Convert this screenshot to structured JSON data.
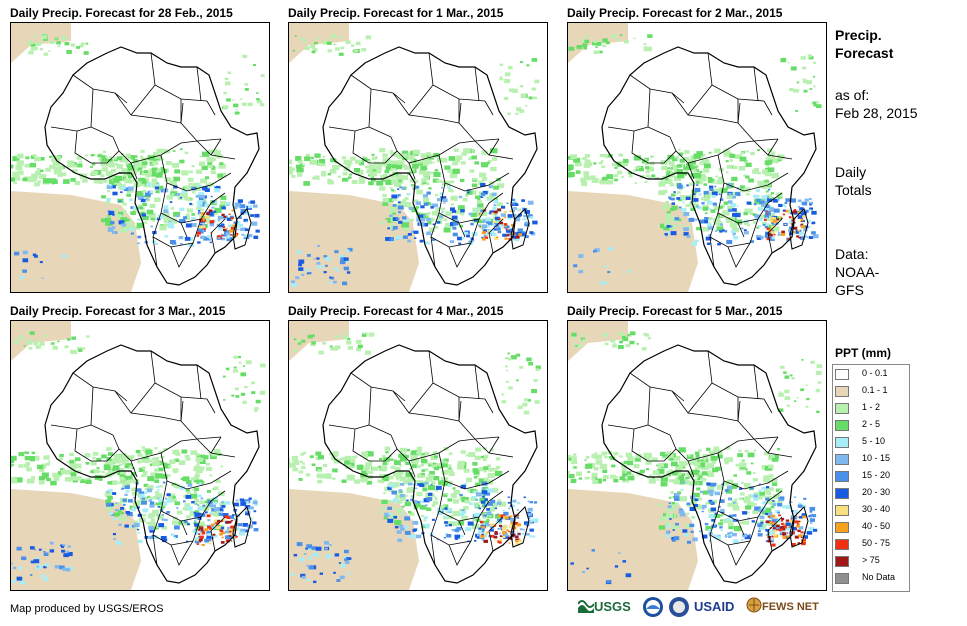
{
  "panels": [
    {
      "title": "Daily Precip. Forecast for 28 Feb., 2015",
      "seed": 11
    },
    {
      "title": "Daily Precip. Forecast for 1 Mar., 2015",
      "seed": 23
    },
    {
      "title": "Daily Precip. Forecast for 2 Mar., 2015",
      "seed": 37
    },
    {
      "title": "Daily Precip. Forecast for 3 Mar., 2015",
      "seed": 41
    },
    {
      "title": "Daily Precip. Forecast for 4 Mar., 2015",
      "seed": 53
    },
    {
      "title": "Daily Precip. Forecast for 5 Mar., 2015",
      "seed": 67
    }
  ],
  "info": {
    "title_line1": "Precip.",
    "title_line2": "Forecast",
    "asof_label": "as of:",
    "asof_date": "Feb 28, 2015",
    "totals_line1": "Daily",
    "totals_line2": "Totals",
    "data_label": "Data:",
    "data_line1": "NOAA-",
    "data_line2": "GFS"
  },
  "legend": {
    "title": "PPT (mm)",
    "items": [
      {
        "label": "0 - 0.1",
        "color": "#ffffff"
      },
      {
        "label": "0.1 - 1",
        "color": "#e8d6b8"
      },
      {
        "label": "1 - 2",
        "color": "#b8f0b0"
      },
      {
        "label": "2 - 5",
        "color": "#66dd66"
      },
      {
        "label": "5 - 10",
        "color": "#a8eef8"
      },
      {
        "label": "10 - 15",
        "color": "#80b8f0"
      },
      {
        "label": "15 - 20",
        "color": "#4a90e8"
      },
      {
        "label": "20 - 30",
        "color": "#1a5ce0"
      },
      {
        "label": "30 - 40",
        "color": "#f8e080"
      },
      {
        "label": "40 - 50",
        "color": "#f8a020"
      },
      {
        "label": "50 - 75",
        "color": "#f03010"
      },
      {
        "label": "> 75",
        "color": "#a01818"
      },
      {
        "label": "No Data",
        "color": "#909090"
      }
    ]
  },
  "footer": {
    "credit": "Map produced by USGS/EROS",
    "logo_usgs": "USGS",
    "logo_usaid": "USAID",
    "logo_fews": "FEWS NET"
  }
}
